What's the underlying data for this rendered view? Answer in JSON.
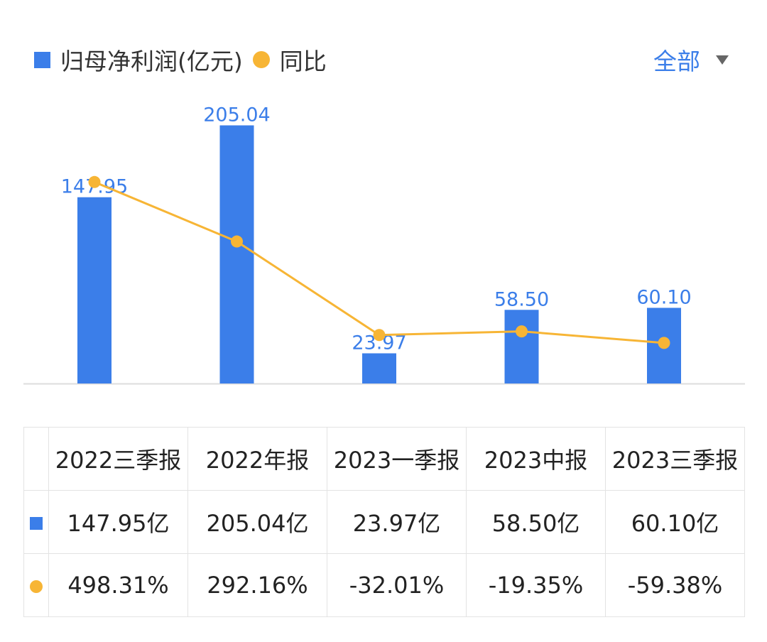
{
  "legend": {
    "series1_label": "归母净利润(亿元)",
    "series2_label": "同比"
  },
  "filter": {
    "label": "全部"
  },
  "colors": {
    "bar": "#3b7ee9",
    "line": "#f7b535",
    "positive": "#e0474c",
    "negative": "#1f9b6b"
  },
  "chart_data": {
    "type": "bar",
    "categories": [
      "2022三季报",
      "2022年报",
      "2023一季报",
      "2023中报",
      "2023三季报"
    ],
    "series": [
      {
        "name": "归母净利润(亿元)",
        "type": "bar",
        "values": [
          147.95,
          205.04,
          23.97,
          58.5,
          60.1
        ],
        "labels": [
          "147.95",
          "205.04",
          "23.97",
          "58.50",
          "60.10"
        ]
      },
      {
        "name": "同比",
        "type": "line",
        "values": [
          498.31,
          292.16,
          -32.01,
          -19.35,
          -59.38
        ]
      }
    ],
    "ylim": [
      0,
      220
    ],
    "y2lim": [
      -200,
      760
    ]
  },
  "table": {
    "headers": [
      "2022三季报",
      "2022年报",
      "2023一季报",
      "2023中报",
      "2023三季报"
    ],
    "profit_row": [
      "147.95亿",
      "205.04亿",
      "23.97亿",
      "58.50亿",
      "60.10亿"
    ],
    "yoy_row": [
      "498.31%",
      "292.16%",
      "-32.01%",
      "-19.35%",
      "-59.38%"
    ]
  }
}
